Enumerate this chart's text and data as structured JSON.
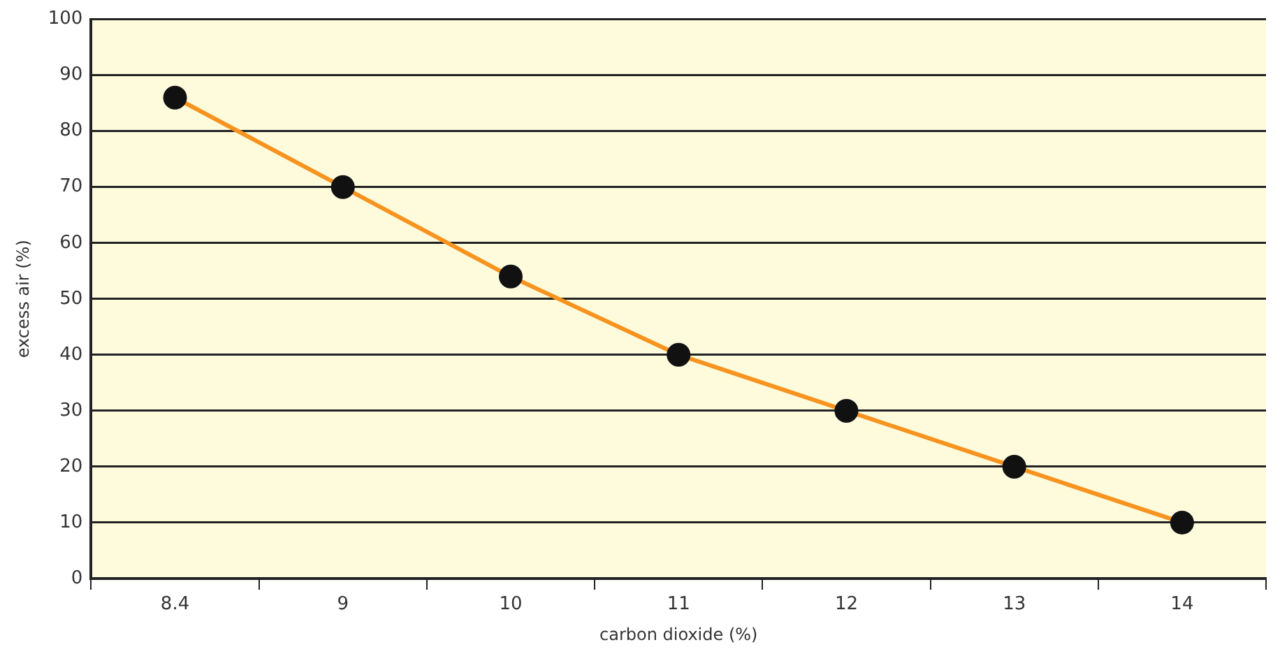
{
  "chart_data": {
    "type": "line",
    "xlabel": "carbon dioxide (%)",
    "ylabel": "excess air (%)",
    "categories": [
      "8.4",
      "9",
      "10",
      "11",
      "12",
      "13",
      "14"
    ],
    "series": [
      {
        "color": "#f7931e",
        "values": [
          86,
          70,
          54,
          40,
          30,
          20,
          10
        ]
      }
    ],
    "ylim": [
      0,
      100
    ],
    "yticks": [
      0,
      10,
      20,
      30,
      40,
      50,
      60,
      70,
      80,
      90,
      100
    ],
    "grid": "y",
    "legend": false,
    "marker": "circle",
    "line_style": "solid"
  }
}
